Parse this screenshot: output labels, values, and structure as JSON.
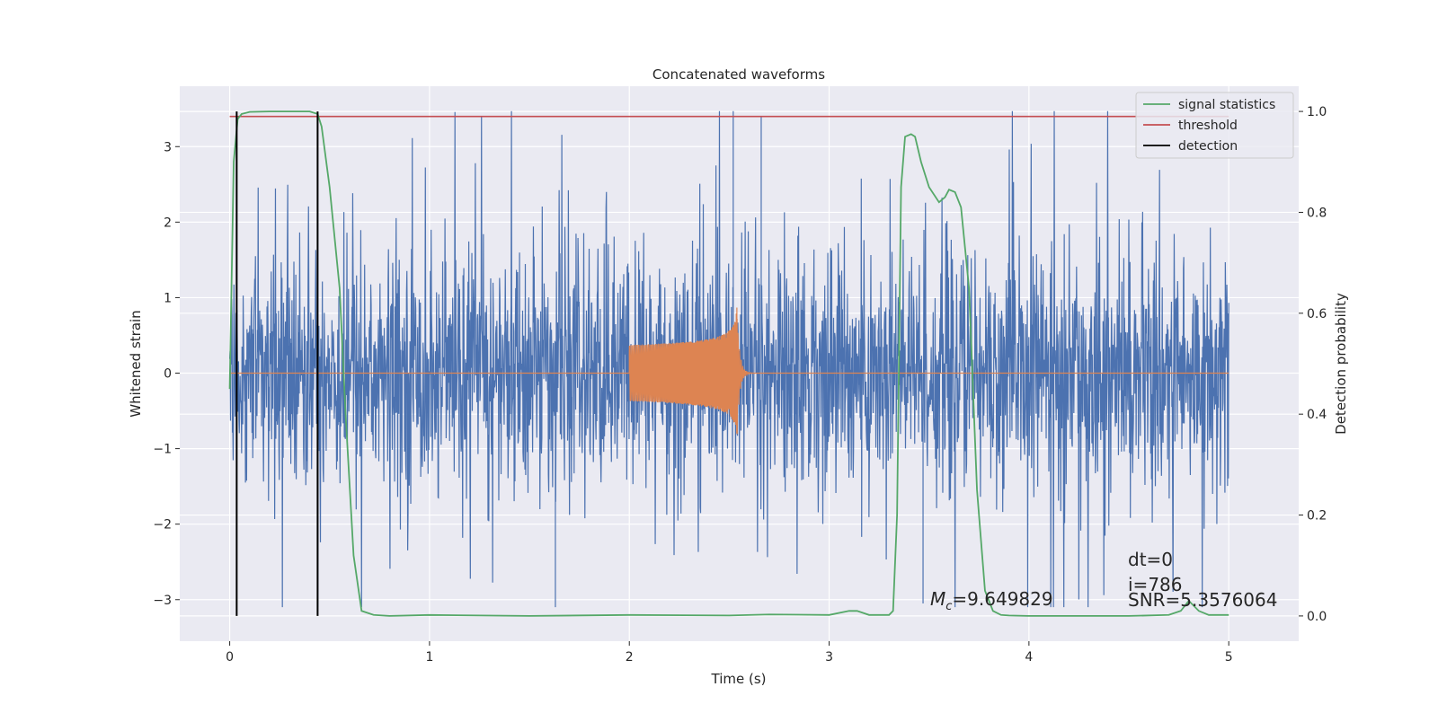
{
  "chart_data": {
    "type": "line",
    "title": "Concatenated waveforms",
    "xlabel": "Time (s)",
    "ylabel_left": "Whitened strain",
    "ylabel_right": "Detection probability",
    "xlim": [
      -0.25,
      5.35
    ],
    "ylim_left": [
      -3.55,
      3.8
    ],
    "ylim_right": [
      -0.05,
      1.05
    ],
    "x_ticks": [
      0,
      1,
      2,
      3,
      4,
      5
    ],
    "x_tick_labels": [
      "0",
      "1",
      "2",
      "3",
      "4",
      "5"
    ],
    "y_left_ticks": [
      -3,
      -2,
      -1,
      0,
      1,
      2,
      3
    ],
    "y_left_tick_labels": [
      "−3",
      "−2",
      "−1",
      "0",
      "1",
      "2",
      "3"
    ],
    "y_right_ticks": [
      0.0,
      0.2,
      0.4,
      0.6,
      0.8,
      1.0
    ],
    "y_right_tick_labels": [
      "0.0",
      "0.2",
      "0.4",
      "0.6",
      "0.8",
      "1.0"
    ],
    "grid": true,
    "legend_position": "top-right",
    "legend": [
      {
        "label": "signal statistics",
        "color": "#55a868"
      },
      {
        "label": "threshold",
        "color": "#c44e52"
      },
      {
        "label": "detection",
        "color": "#000000"
      }
    ],
    "series": [
      {
        "name": "",
        "axis": "left",
        "color": "#4c72b0",
        "kind": "noise",
        "x_range": [
          0,
          5
        ],
        "typical_amplitude": 1.3,
        "max": 3.47,
        "min": -3.1
      },
      {
        "name": "",
        "axis": "left",
        "color": "#dd8452",
        "kind": "chirp",
        "start": 2.0,
        "merger": 2.54,
        "start_amplitude": 0.2,
        "peak_amplitude": 0.95,
        "min_at_merger": -0.8
      },
      {
        "name": "signal statistics",
        "axis": "right",
        "color": "#55a868",
        "x": [
          0.0,
          0.02,
          0.04,
          0.06,
          0.1,
          0.2,
          0.3,
          0.4,
          0.44,
          0.46,
          0.5,
          0.55,
          0.58,
          0.62,
          0.66,
          0.72,
          0.8,
          1.0,
          1.5,
          2.0,
          2.5,
          2.7,
          3.0,
          3.1,
          3.14,
          3.2,
          3.3,
          3.32,
          3.34,
          3.36,
          3.38,
          3.41,
          3.43,
          3.46,
          3.5,
          3.55,
          3.58,
          3.6,
          3.63,
          3.66,
          3.7,
          3.74,
          3.78,
          3.82,
          3.86,
          3.9,
          4.0,
          4.5,
          4.7,
          4.76,
          4.8,
          4.85,
          4.9,
          5.0
        ],
        "values": [
          0.45,
          0.9,
          0.985,
          0.995,
          0.999,
          1.0,
          1.0,
          1.0,
          0.995,
          0.97,
          0.85,
          0.65,
          0.4,
          0.12,
          0.01,
          0.002,
          0.0,
          0.002,
          0.0,
          0.002,
          0.001,
          0.003,
          0.002,
          0.01,
          0.01,
          0.002,
          0.002,
          0.01,
          0.2,
          0.85,
          0.95,
          0.955,
          0.95,
          0.9,
          0.85,
          0.82,
          0.83,
          0.845,
          0.84,
          0.81,
          0.65,
          0.25,
          0.05,
          0.01,
          0.002,
          0.001,
          0.0,
          0.0,
          0.002,
          0.01,
          0.03,
          0.01,
          0.002,
          0.002
        ]
      },
      {
        "name": "threshold",
        "axis": "right",
        "color": "#c44e52",
        "x": [
          0.0,
          5.0
        ],
        "values": [
          0.99,
          0.99
        ]
      },
      {
        "name": "detection",
        "axis": "right",
        "color": "#000000",
        "kind": "vertical_lines",
        "x": [
          0.035,
          0.44
        ],
        "y_range": [
          0.0,
          1.0
        ]
      }
    ],
    "annotations": {
      "mc_symbol": "M",
      "mc_subscript": "c",
      "mc_value": "=9.649829",
      "dt": "dt=0",
      "i": "i=786",
      "snr": "SNR=5.3576064"
    }
  }
}
